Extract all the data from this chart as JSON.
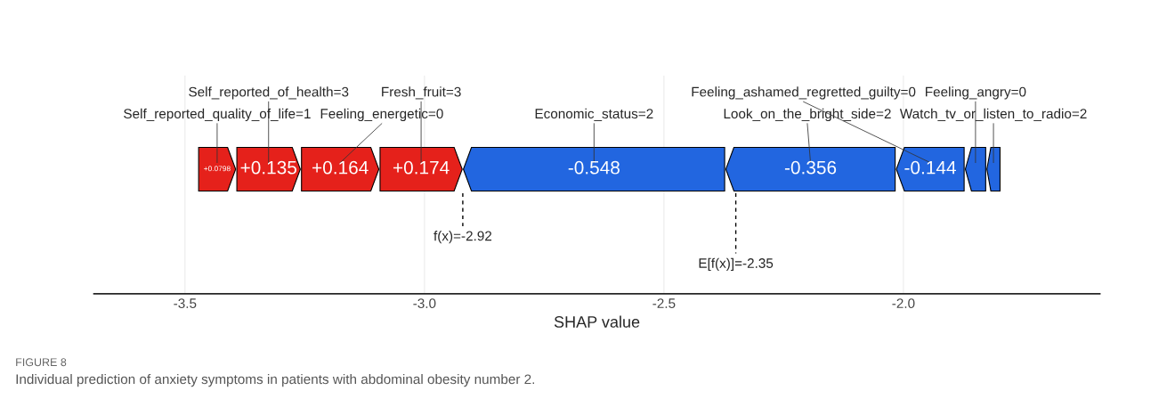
{
  "chart_data": {
    "type": "bar",
    "orientation": "horizontal",
    "title": "FIGURE 8",
    "subtitle": "Individual prediction of anxiety symptoms in patients with abdominal obesity number 2.",
    "xlabel": "SHAP value",
    "categories": [
      null
    ],
    "series": [
      {
        "name": "Self_reported_quality_of_life=1",
        "color": "#e5211b",
        "base": [
          -3.4728
        ],
        "values": [
          0.0798
        ],
        "value_labels": [
          "+0.0798"
        ]
      },
      {
        "name": "Self_reported_of_health=3",
        "color": "#e5211b",
        "base": [
          -3.393
        ],
        "values": [
          0.135
        ],
        "value_labels": [
          "+0.135"
        ]
      },
      {
        "name": "Feeling_energetic=0",
        "color": "#e5211b",
        "base": [
          -3.258
        ],
        "values": [
          0.164
        ],
        "value_labels": [
          "+0.164"
        ]
      },
      {
        "name": "Fresh_fruit=3",
        "color": "#e5211b",
        "base": [
          -3.094
        ],
        "values": [
          0.174
        ],
        "value_labels": [
          "+0.174"
        ]
      },
      {
        "name": "Economic_status=2",
        "color": "#2266e0",
        "base": [
          -2.372
        ],
        "values": [
          -0.548
        ],
        "value_labels": [
          "-0.548"
        ]
      },
      {
        "name": "Look_on_the_bright_side=2",
        "color": "#2266e0",
        "base": [
          -2.016
        ],
        "values": [
          -0.356
        ],
        "value_labels": [
          "-0.356"
        ]
      },
      {
        "name": "Feeling_ashamed_regretted_guilty=0",
        "color": "#2266e0",
        "base": [
          -1.872
        ],
        "values": [
          -0.144
        ],
        "value_labels": [
          "-0.144"
        ]
      },
      {
        "name": "Feeling_angry=0",
        "color": "#2266e0",
        "base": [
          -1.827
        ],
        "values": [
          -0.045
        ]
      },
      {
        "name": "Watch_tv_or_listen_to_radio=2",
        "color": "#2266e0",
        "base": [
          -1.797
        ],
        "values": [
          -0.03
        ]
      }
    ],
    "ref_lines": [
      {
        "axis": "x",
        "value": -2.92,
        "label": "f(x)=-2.92",
        "line_style": "dashed"
      },
      {
        "axis": "x",
        "value": -2.35,
        "label": "E[f(x)]=-2.35",
        "line_style": "dashed"
      }
    ],
    "xlim": [
      -3.69,
      -1.59
    ],
    "xticks": [
      {
        "value": -3.5,
        "label": "-3.5"
      },
      {
        "value": -3.0,
        "label": "-3.0"
      },
      {
        "value": -2.5,
        "label": "-2.5"
      },
      {
        "value": -2.0,
        "label": "-2.0"
      }
    ],
    "grid": "x",
    "tick_labels": "x"
  }
}
